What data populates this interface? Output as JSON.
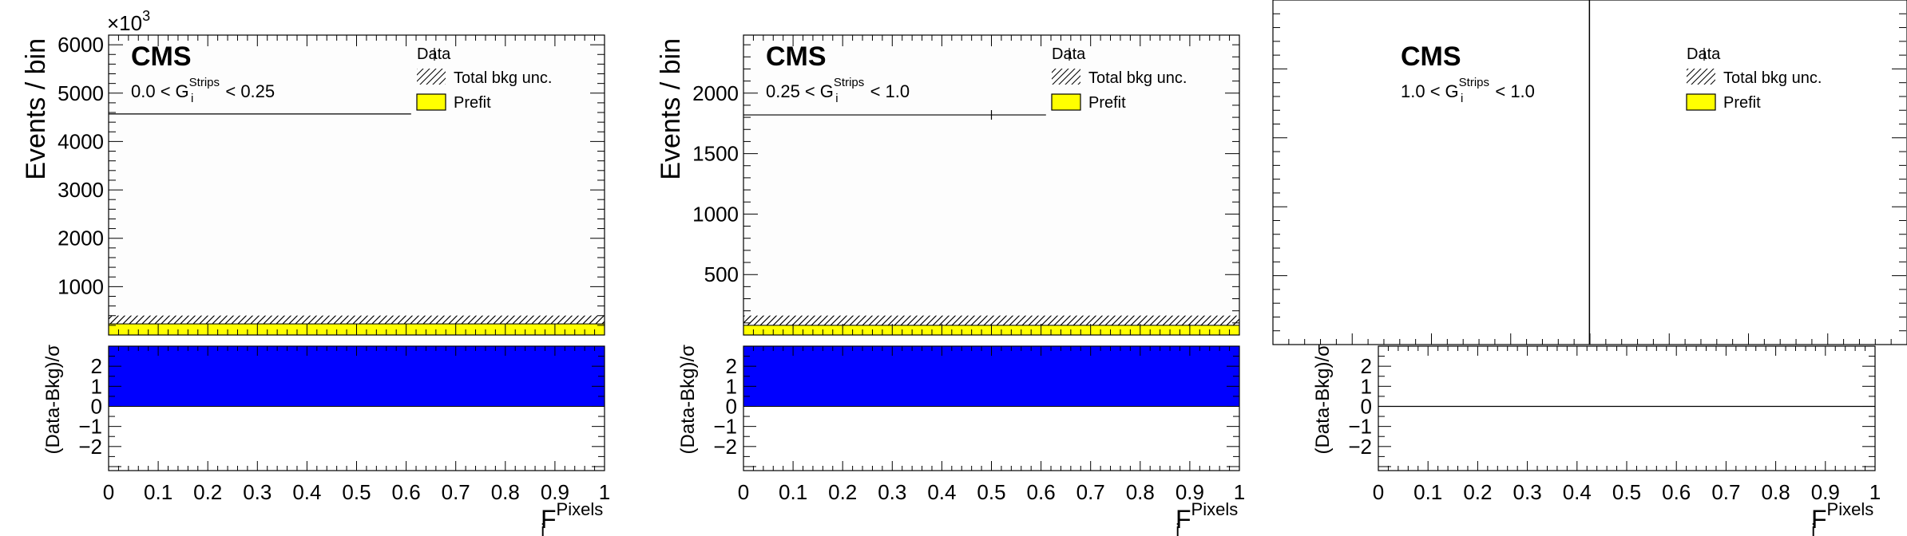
{
  "colors": {
    "prefit_fill": "#ffff00",
    "pull_fill": "#0000ff",
    "axis": "#000000",
    "frame_fill": "#fdfdfd"
  },
  "common": {
    "xlabel_main": "F",
    "xlabel_sub": "i",
    "xlabel_sup": "Pixels",
    "ylabel_ratio": "(Data-Bkg)/σ",
    "cms": "CMS",
    "legend": {
      "data": "Data",
      "total_bkg_unc": "Total bkg unc.",
      "prefit": "Prefit"
    },
    "cut_var_main": "G",
    "cut_var_sub": "i",
    "cut_var_sup": "Strips"
  },
  "chart_data": [
    {
      "type": "bar",
      "ylabel": "Events / bin",
      "y_multiplier": "×10",
      "y_multiplier_exp": "3",
      "cut_lo": "0.0 <",
      "cut_hi": "< 0.25",
      "xlim": [
        0,
        1
      ],
      "ylim": [
        0,
        6200
      ],
      "yticks": [
        1000,
        2000,
        3000,
        4000,
        5000,
        6000
      ],
      "ytick_labels": [
        "1000",
        "2000",
        "3000",
        "4000",
        "5000",
        "6000"
      ],
      "xticks": [
        0,
        0.1,
        0.2,
        0.3,
        0.4,
        0.5,
        0.6,
        0.7,
        0.8,
        0.9,
        1
      ],
      "xtick_labels": [
        "0",
        "0.1",
        "0.2",
        "0.3",
        "0.4",
        "0.5",
        "0.6",
        "0.7",
        "0.8",
        "0.9",
        "1"
      ],
      "data_bins": [
        {
          "x0": 0.0,
          "x1": 0.61,
          "y": 4570
        }
      ],
      "prefit": {
        "x0": 0.0,
        "x1": 1.0,
        "y": 230
      },
      "unc_band": {
        "x0": 0.0,
        "x1": 1.0,
        "y0": 230,
        "y1": 400
      },
      "ratio_ylim": [
        -3.2,
        3.0
      ],
      "ratio_yticks": [
        -2,
        -1,
        0,
        1,
        2
      ],
      "ratio_ytick_labels": [
        "−2",
        "−1",
        "0",
        "1",
        "2"
      ],
      "pull": {
        "x0": 0.0,
        "x1": 1.0,
        "value": 3.0
      }
    },
    {
      "type": "bar",
      "ylabel": "Events / bin",
      "cut_lo": "0.25 <",
      "cut_hi": "< 1.0",
      "xlim": [
        0,
        1
      ],
      "ylim": [
        0,
        2480
      ],
      "yticks": [
        500,
        1000,
        1500,
        2000
      ],
      "ytick_labels": [
        "500",
        "1000",
        "1500",
        "2000"
      ],
      "xticks": [
        0,
        0.1,
        0.2,
        0.3,
        0.4,
        0.5,
        0.6,
        0.7,
        0.8,
        0.9,
        1
      ],
      "xtick_labels": [
        "0",
        "0.1",
        "0.2",
        "0.3",
        "0.4",
        "0.5",
        "0.6",
        "0.7",
        "0.8",
        "0.9",
        "1"
      ],
      "data_bins": [
        {
          "x0": 0.0,
          "x1": 0.61,
          "y": 1820
        }
      ],
      "prefit": {
        "x0": 0.0,
        "x1": 1.0,
        "y": 80
      },
      "unc_band": {
        "x0": 0.0,
        "x1": 1.0,
        "y0": 80,
        "y1": 160
      },
      "ratio_ylim": [
        -3.2,
        3.0
      ],
      "ratio_yticks": [
        -2,
        -1,
        0,
        1,
        2
      ],
      "ratio_ytick_labels": [
        "−2",
        "−1",
        "0",
        "1",
        "2"
      ],
      "pull": {
        "x0": 0.0,
        "x1": 1.0,
        "value": 3.0
      }
    },
    {
      "type": "bar",
      "ylabel": "",
      "cut_lo": "1.0 <",
      "cut_hi": "< 1.0",
      "xlim": [
        0,
        1
      ],
      "xticks": [
        0,
        0.1,
        0.2,
        0.3,
        0.4,
        0.5,
        0.6,
        0.7,
        0.8,
        0.9,
        1
      ],
      "xtick_labels": [
        "0",
        "0.1",
        "0.2",
        "0.3",
        "0.4",
        "0.5",
        "0.6",
        "0.7",
        "0.8",
        "0.9",
        "1"
      ],
      "data_bins": [],
      "vertical_line_x": 0.425,
      "ratio_ylim": [
        -3.2,
        3.0
      ],
      "ratio_yticks": [
        -2,
        -1,
        0,
        1,
        2
      ],
      "ratio_ytick_labels": [
        "−2",
        "−1",
        "0",
        "1",
        "2"
      ],
      "pull": null
    }
  ]
}
